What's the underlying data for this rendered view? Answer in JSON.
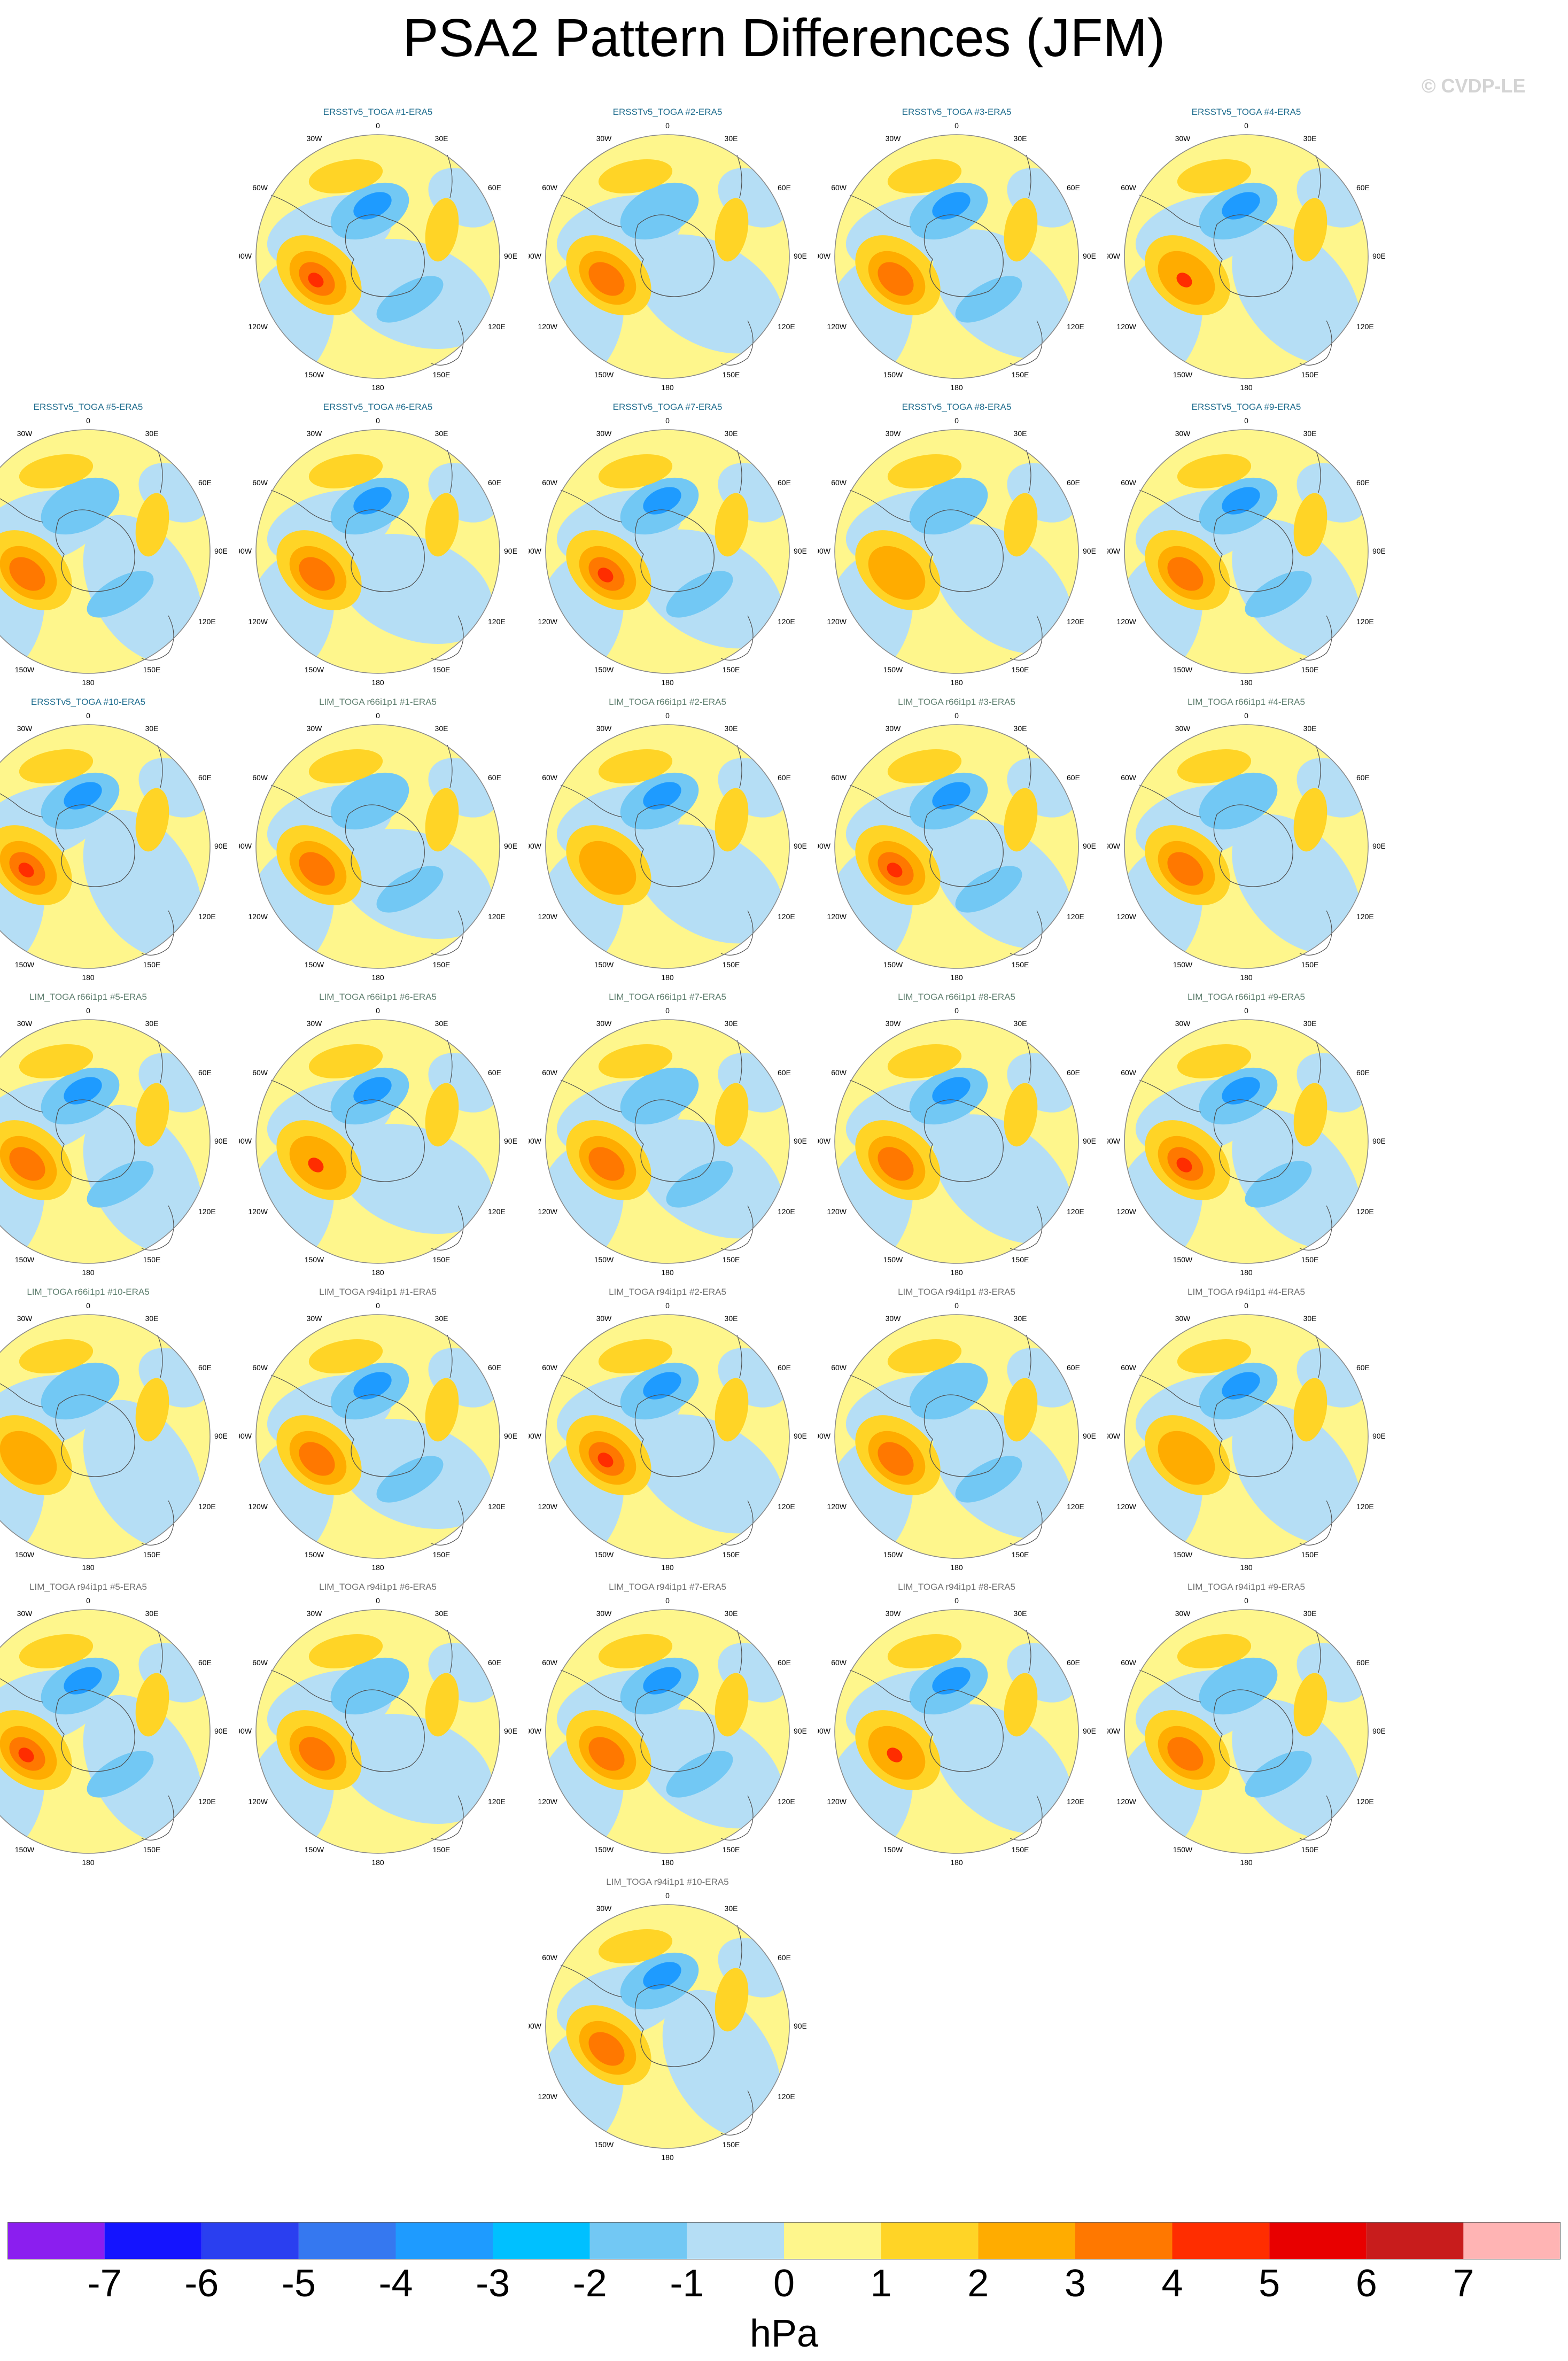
{
  "title": "PSA2 Pattern Differences (JFM)",
  "watermark": "© CVDP-LE",
  "map_labels": {
    "top": "0",
    "ne": "30E",
    "e60": "60E",
    "e90": "90E",
    "e120": "120E",
    "e150": "150E",
    "bottom": "180",
    "w150": "150W",
    "w120": "120W",
    "w90": "90W",
    "w60": "60W",
    "nw": "30W"
  },
  "panels": [
    {
      "label": "ERSSTv5_TOGA #1-ERA5",
      "group": "ersst",
      "col": 1,
      "row": 0
    },
    {
      "label": "ERSSTv5_TOGA #2-ERA5",
      "group": "ersst",
      "col": 2,
      "row": 0
    },
    {
      "label": "ERSSTv5_TOGA #3-ERA5",
      "group": "ersst",
      "col": 3,
      "row": 0
    },
    {
      "label": "ERSSTv5_TOGA #4-ERA5",
      "group": "ersst",
      "col": 4,
      "row": 0
    },
    {
      "label": "ERSSTv5_TOGA #5-ERA5",
      "group": "ersst",
      "col": 0,
      "row": 1
    },
    {
      "label": "ERSSTv5_TOGA #6-ERA5",
      "group": "ersst",
      "col": 1,
      "row": 1
    },
    {
      "label": "ERSSTv5_TOGA #7-ERA5",
      "group": "ersst",
      "col": 2,
      "row": 1
    },
    {
      "label": "ERSSTv5_TOGA #8-ERA5",
      "group": "ersst",
      "col": 3,
      "row": 1
    },
    {
      "label": "ERSSTv5_TOGA #9-ERA5",
      "group": "ersst",
      "col": 4,
      "row": 1
    },
    {
      "label": "ERSSTv5_TOGA #10-ERA5",
      "group": "ersst",
      "col": 0,
      "row": 2
    },
    {
      "label": "LIM_TOGA r66i1p1 #1-ERA5",
      "group": "lim66",
      "col": 1,
      "row": 2
    },
    {
      "label": "LIM_TOGA r66i1p1 #2-ERA5",
      "group": "lim66",
      "col": 2,
      "row": 2
    },
    {
      "label": "LIM_TOGA r66i1p1 #3-ERA5",
      "group": "lim66",
      "col": 3,
      "row": 2
    },
    {
      "label": "LIM_TOGA r66i1p1 #4-ERA5",
      "group": "lim66",
      "col": 4,
      "row": 2
    },
    {
      "label": "LIM_TOGA r66i1p1 #5-ERA5",
      "group": "lim66",
      "col": 0,
      "row": 3
    },
    {
      "label": "LIM_TOGA r66i1p1 #6-ERA5",
      "group": "lim66",
      "col": 1,
      "row": 3
    },
    {
      "label": "LIM_TOGA r66i1p1 #7-ERA5",
      "group": "lim66",
      "col": 2,
      "row": 3
    },
    {
      "label": "LIM_TOGA r66i1p1 #8-ERA5",
      "group": "lim66",
      "col": 3,
      "row": 3
    },
    {
      "label": "LIM_TOGA r66i1p1 #9-ERA5",
      "group": "lim66",
      "col": 4,
      "row": 3
    },
    {
      "label": "LIM_TOGA r66i1p1 #10-ERA5",
      "group": "lim66",
      "col": 0,
      "row": 4
    },
    {
      "label": "LIM_TOGA r94i1p1 #1-ERA5",
      "group": "lim94",
      "col": 1,
      "row": 4
    },
    {
      "label": "LIM_TOGA r94i1p1 #2-ERA5",
      "group": "lim94",
      "col": 2,
      "row": 4
    },
    {
      "label": "LIM_TOGA r94i1p1 #3-ERA5",
      "group": "lim94",
      "col": 3,
      "row": 4
    },
    {
      "label": "LIM_TOGA r94i1p1 #4-ERA5",
      "group": "lim94",
      "col": 4,
      "row": 4
    },
    {
      "label": "LIM_TOGA r94i1p1 #5-ERA5",
      "group": "lim94",
      "col": 0,
      "row": 5
    },
    {
      "label": "LIM_TOGA r94i1p1 #6-ERA5",
      "group": "lim94",
      "col": 1,
      "row": 5
    },
    {
      "label": "LIM_TOGA r94i1p1 #7-ERA5",
      "group": "lim94",
      "col": 2,
      "row": 5
    },
    {
      "label": "LIM_TOGA r94i1p1 #8-ERA5",
      "group": "lim94",
      "col": 3,
      "row": 5
    },
    {
      "label": "LIM_TOGA r94i1p1 #9-ERA5",
      "group": "lim94",
      "col": 4,
      "row": 5
    },
    {
      "label": "LIM_TOGA r94i1p1 #10-ERA5",
      "group": "lim94",
      "col": 2,
      "row": 6
    }
  ],
  "colorbar": {
    "colors": [
      "#8b1eef",
      "#1414ff",
      "#2a3ff0",
      "#3578f0",
      "#1e9bff",
      "#00c0ff",
      "#72c8f4",
      "#b5def5",
      "#fef68c",
      "#ffd426",
      "#ffac00",
      "#ff7800",
      "#ff2d00",
      "#e80000",
      "#c81c1c",
      "#ffb4b4"
    ],
    "ticks": [
      "-7",
      "-6",
      "-5",
      "-4",
      "-3",
      "-2",
      "-1",
      "0",
      "1",
      "2",
      "3",
      "4",
      "5",
      "6",
      "7"
    ],
    "units": "hPa"
  }
}
